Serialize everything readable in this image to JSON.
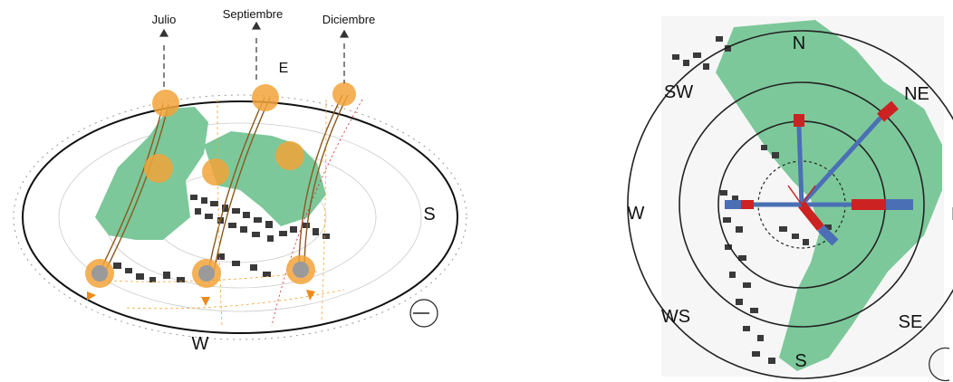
{
  "left_diagram": {
    "months": [
      "Julio",
      "Septiembre",
      "Diciembre"
    ],
    "directions": {
      "east": "E",
      "south": "S",
      "west": "W"
    }
  },
  "right_diagram": {
    "directions": {
      "north": "N",
      "north_east": "NE",
      "east": "E",
      "south_east": "SE",
      "south": "S",
      "south_west_bottom": "WS",
      "west": "W",
      "south_west_top": "SW"
    }
  },
  "colors": {
    "green_space": "#7cc89a",
    "sun": "#f2a33a",
    "sun_path": "#8a5a1f",
    "wind_blue": "#4b6fb5",
    "wind_red": "#cc2222",
    "ring": "#222222"
  }
}
